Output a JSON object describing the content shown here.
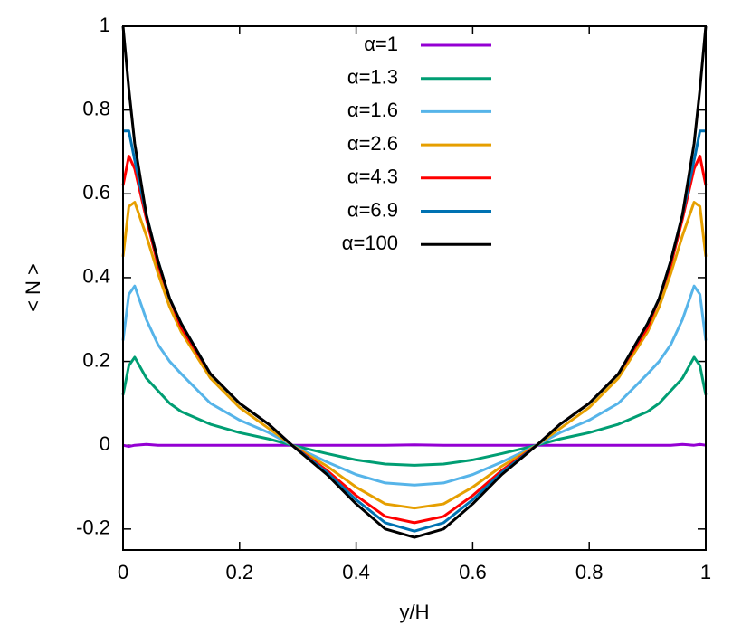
{
  "chart_data": {
    "type": "line",
    "x_label": "y/H",
    "y_label": "< N >",
    "x": [
      0,
      0.01,
      0.02,
      0.04,
      0.06,
      0.08,
      0.1,
      0.15,
      0.2,
      0.25,
      0.29,
      0.35,
      0.4,
      0.45,
      0.5,
      0.55,
      0.6,
      0.65,
      0.71,
      0.75,
      0.8,
      0.85,
      0.9,
      0.92,
      0.94,
      0.96,
      0.98,
      0.99,
      1
    ],
    "series": [
      {
        "name": "α=1",
        "color": "#9400d3",
        "values": [
          0,
          -0.003,
          0,
          0.002,
          0,
          0,
          0,
          0,
          0,
          0,
          0,
          0,
          0,
          0,
          0.001,
          0,
          0,
          0,
          0,
          0,
          0,
          0,
          0,
          0,
          0,
          0.002,
          0,
          0.002,
          0
        ]
      },
      {
        "name": "α=1.3",
        "color": "#009e73",
        "values": [
          0.12,
          0.19,
          0.21,
          0.16,
          0.13,
          0.1,
          0.08,
          0.05,
          0.03,
          0.015,
          0,
          -0.02,
          -0.035,
          -0.045,
          -0.048,
          -0.045,
          -0.035,
          -0.02,
          0,
          0.015,
          0.03,
          0.05,
          0.08,
          0.1,
          0.13,
          0.16,
          0.21,
          0.19,
          0.12
        ]
      },
      {
        "name": "α=1.6",
        "color": "#56b4e9",
        "values": [
          0.25,
          0.36,
          0.38,
          0.3,
          0.24,
          0.2,
          0.17,
          0.1,
          0.06,
          0.03,
          0,
          -0.04,
          -0.07,
          -0.09,
          -0.095,
          -0.09,
          -0.07,
          -0.04,
          0,
          0.03,
          0.06,
          0.1,
          0.17,
          0.2,
          0.24,
          0.3,
          0.38,
          0.36,
          0.25
        ]
      },
      {
        "name": "α=2.6",
        "color": "#e69f00",
        "values": [
          0.45,
          0.57,
          0.58,
          0.5,
          0.41,
          0.33,
          0.27,
          0.16,
          0.09,
          0.04,
          0,
          -0.05,
          -0.1,
          -0.14,
          -0.15,
          -0.14,
          -0.1,
          -0.05,
          0,
          0.04,
          0.09,
          0.16,
          0.27,
          0.33,
          0.41,
          0.5,
          0.58,
          0.57,
          0.45
        ]
      },
      {
        "name": "α=4.3",
        "color": "#ff0000",
        "values": [
          0.62,
          0.69,
          0.66,
          0.54,
          0.43,
          0.35,
          0.28,
          0.17,
          0.1,
          0.05,
          0,
          -0.06,
          -0.12,
          -0.17,
          -0.185,
          -0.17,
          -0.12,
          -0.06,
          0,
          0.05,
          0.1,
          0.17,
          0.28,
          0.35,
          0.43,
          0.54,
          0.66,
          0.69,
          0.62
        ]
      },
      {
        "name": "α=6.9",
        "color": "#0072b2",
        "values": [
          0.75,
          0.75,
          0.68,
          0.55,
          0.44,
          0.35,
          0.29,
          0.17,
          0.1,
          0.05,
          0,
          -0.065,
          -0.13,
          -0.185,
          -0.205,
          -0.185,
          -0.13,
          -0.065,
          0,
          0.05,
          0.1,
          0.17,
          0.29,
          0.35,
          0.44,
          0.55,
          0.68,
          0.75,
          0.75
        ]
      },
      {
        "name": "α=100",
        "color": "#000000",
        "values": [
          1,
          0.85,
          0.72,
          0.55,
          0.44,
          0.35,
          0.29,
          0.17,
          0.1,
          0.05,
          0,
          -0.07,
          -0.14,
          -0.2,
          -0.22,
          -0.2,
          -0.14,
          -0.07,
          0,
          0.05,
          0.1,
          0.17,
          0.29,
          0.35,
          0.44,
          0.55,
          0.72,
          0.85,
          1
        ]
      }
    ],
    "xlim": [
      0,
      1
    ],
    "xticks": [
      0,
      0.2,
      0.4,
      0.6,
      0.8,
      1
    ],
    "ylim": [
      -0.25,
      1
    ],
    "yticks": [
      -0.2,
      0,
      0.2,
      0.4,
      0.6,
      0.8,
      1
    ],
    "grid": false,
    "legend": "top"
  }
}
